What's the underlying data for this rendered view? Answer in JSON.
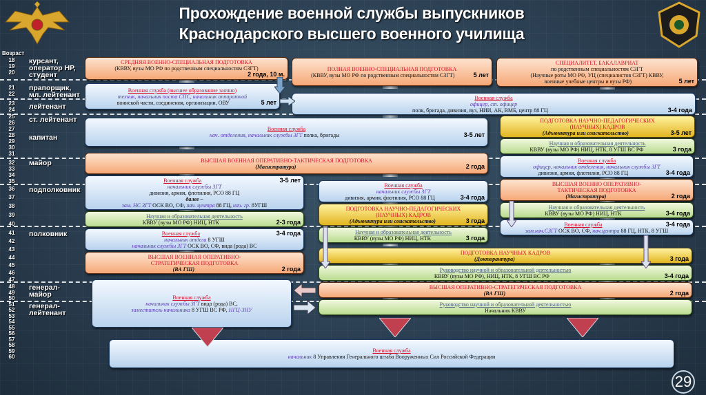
{
  "header": {
    "title_line1": "Прохождение военной службы выпускников",
    "title_line2": "Краснодарского высшего военного училища"
  },
  "age_header": "Возраст",
  "ages": [
    "18",
    "19",
    "20",
    "21",
    "22",
    "23",
    "24",
    "25",
    "26",
    "27",
    "28",
    "29",
    "30",
    "31",
    "32",
    "33",
    "34",
    "35",
    "36",
    "37",
    "38",
    "39",
    "40",
    "41",
    "42",
    "43",
    "44",
    "45",
    "46",
    "47",
    "48",
    "49",
    "50",
    "51",
    "52",
    "53",
    "54",
    "55",
    "56",
    "57",
    "58",
    "59",
    "60"
  ],
  "ranks": [
    {
      "lines": [
        "курсант,",
        "оператор НР,",
        "студент"
      ]
    },
    {
      "lines": [
        "прапорщик,",
        "мл. лейтенант"
      ]
    },
    {
      "lines": [
        "лейтенант"
      ]
    },
    {
      "lines": [
        "ст. лейтенант"
      ]
    },
    {
      "lines": [
        "капитан"
      ]
    },
    {
      "lines": [
        "майор"
      ]
    },
    {
      "lines": [
        "подполковник"
      ]
    },
    {
      "lines": [
        "полковник"
      ]
    },
    {
      "lines": [
        "генерал-",
        "майор"
      ]
    },
    {
      "lines": [
        "генерал-",
        "лейтенант"
      ]
    }
  ],
  "colors": {
    "title_red": "#d4102a",
    "role_purple": "#5a3cb0",
    "education": "#f6a877",
    "service": "#b9d3ee",
    "science_training": "#e2b520",
    "science_work": "#b9dc8e"
  },
  "boxes": [
    {
      "id": "b1",
      "kind": "orange",
      "duration": "2 года, 10 м.",
      "lines": [
        [
          {
            "s": "red",
            "t": "СРЕДНЯЯ ВОЕННО-СПЕЦИАЛЬНАЯ ПОДГОТОВКА"
          }
        ],
        [
          {
            "s": "n",
            "t": "(КВВУ, вузы МО РФ по родственным специальностям СЗГТ)"
          }
        ]
      ]
    },
    {
      "id": "b2",
      "kind": "blue",
      "duration": "5 лет",
      "lines": [
        [
          {
            "s": "redu",
            "t": "Военная служба (высшее образование заочно)"
          }
        ],
        [
          {
            "s": "it",
            "t": "техник, начальник поста СПС, начальник аппаратной"
          }
        ],
        [
          {
            "s": "n",
            "t": "воинской части, соединения, организации, ОВУ"
          }
        ]
      ]
    },
    {
      "id": "b3",
      "kind": "orange",
      "duration": "5 лет",
      "lines": [
        [
          {
            "s": "red",
            "t": "ПОЛНАЯ ВОЕННО-СПЕЦИАЛЬНАЯ ПОДГОТОВКА"
          }
        ],
        [
          {
            "s": "n",
            "t": "(КВВУ, вузы МО РФ по родственным специальностям СЗГТ)"
          }
        ]
      ]
    },
    {
      "id": "b4",
      "kind": "orange",
      "duration": "5 лет",
      "lines": [
        [
          {
            "s": "red",
            "t": "СПЕЦИАЛИТЕТ, БАКАЛАВРИАТ"
          }
        ],
        [
          {
            "s": "n",
            "t": "по родственным специальностям СЗГТ"
          }
        ],
        [
          {
            "s": "n",
            "t": "(Научные роты МО РФ, УЦ (специалистов СЗГТ) КВВУ,"
          }
        ],
        [
          {
            "s": "n",
            "t": "военные учебные центры и вузы РФ)"
          }
        ]
      ]
    },
    {
      "id": "b5",
      "kind": "blue",
      "duration": "3-4 года",
      "lines": [
        [
          {
            "s": "redu",
            "t": "Военная служба"
          }
        ],
        [
          {
            "s": "it",
            "t": "офицер, ст. офицер"
          }
        ],
        [
          {
            "s": "n",
            "t": "полк, бригада, дивизия, вуз, НИИ, АК, ВМБ, центр 88 ГЦ"
          }
        ]
      ]
    },
    {
      "id": "b6",
      "kind": "blue",
      "duration": "3-5 лет",
      "lines": [
        [
          {
            "s": "redu",
            "t": "Военная служба"
          }
        ],
        [
          {
            "s": "it",
            "t": "нач. отделения, начальник службы ЗГТ "
          },
          {
            "s": "n",
            "t": "полка, бригады"
          }
        ]
      ]
    },
    {
      "id": "b7",
      "kind": "yellow",
      "duration": "3-5 лет",
      "lines": [
        [
          {
            "s": "red",
            "t": "ПОДГОТОВКА НАУЧНО-ПЕДАГОГИЧЕСКИХ"
          }
        ],
        [
          {
            "s": "red",
            "t": "(НАУЧНЫХ) КАДРОВ"
          }
        ],
        [
          {
            "s": "bi",
            "t": "(Адъюнктура или соискательство)"
          }
        ]
      ]
    },
    {
      "id": "b8",
      "kind": "green",
      "duration": "3 года",
      "lines": [
        [
          {
            "s": "ul",
            "t": "Научная и образовательная деятельность"
          }
        ],
        [
          {
            "s": "n",
            "t": "КВВУ (вузы МО РФ) НИЦ, НТК, 8 УГШ ВС РФ"
          }
        ]
      ]
    },
    {
      "id": "b9",
      "kind": "orange",
      "duration": "2 года",
      "lines": [
        [
          {
            "s": "red",
            "t": "ВЫСШАЯ ВОЕННАЯ ОПЕРАТИВНО-ТАКТИЧЕСКАЯ ПОДГОТОВКА"
          }
        ],
        [
          {
            "s": "bi",
            "t": "(Магистратура)"
          }
        ]
      ]
    },
    {
      "id": "b10",
      "kind": "blue",
      "duration": "3-4 года",
      "lines": [
        [
          {
            "s": "redu",
            "t": "Военная служба"
          }
        ],
        [
          {
            "s": "it",
            "t": "офицер, начальник отделения, начальник службы ЗГТ"
          }
        ],
        [
          {
            "s": "n",
            "t": "дивизия, армия, флотилия, РСО 88 ГЦ"
          }
        ]
      ]
    },
    {
      "id": "b11",
      "kind": "blue",
      "duration": "3-5 лет",
      "lines": [
        [
          {
            "s": "redu",
            "t": "Военная служба"
          }
        ],
        [
          {
            "s": "it",
            "t": "начальник службы ЗГТ"
          }
        ],
        [
          {
            "s": "n",
            "t": "дивизия, армия, флотилия, РСО 88 ГЦ"
          }
        ],
        [
          {
            "s": "bi",
            "t": "далее –"
          }
        ],
        [
          {
            "s": "it",
            "t": "зам. НС ЗГТ "
          },
          {
            "s": "n",
            "t": "ОСК ВО, СФ, "
          },
          {
            "s": "it",
            "t": "нач. центра "
          },
          {
            "s": "n",
            "t": "88 ГЦ, "
          },
          {
            "s": "it",
            "t": "нач. гр. "
          },
          {
            "s": "n",
            "t": "8УГШ"
          }
        ]
      ]
    },
    {
      "id": "b12",
      "kind": "green",
      "duration": "2-3 года",
      "lines": [
        [
          {
            "s": "ul",
            "t": "Научная и образовательная деятельность"
          }
        ],
        [
          {
            "s": "n",
            "t": "КВВУ (вузы МО РФ) НИЦ, НТК"
          }
        ]
      ]
    },
    {
      "id": "b13",
      "kind": "blue",
      "duration": "3-4 года",
      "lines": [
        [
          {
            "s": "redu",
            "t": "Военная служба"
          }
        ],
        [
          {
            "s": "it",
            "t": "начальник службы ЗГТ"
          }
        ],
        [
          {
            "s": "n",
            "t": "дивизия, армия, флотилия, РСО 88 ГЦ"
          }
        ]
      ]
    },
    {
      "id": "b14",
      "kind": "orange",
      "duration": "2 года",
      "lines": [
        [
          {
            "s": "red",
            "t": "ВЫСШАЯ ВОЕННО ОПЕРАТИВНО-"
          }
        ],
        [
          {
            "s": "red",
            "t": "ТАКТИЧЕСКАЯ ПОДГОТОВКА"
          }
        ],
        [
          {
            "s": "bi",
            "t": "(Магистратура)"
          }
        ]
      ]
    },
    {
      "id": "b15",
      "kind": "yellow",
      "duration": "3 года",
      "lines": [
        [
          {
            "s": "red",
            "t": "ПОДГОТОВКА НАУЧНО-ПЕДАГОГИЧЕСКИХ"
          }
        ],
        [
          {
            "s": "red",
            "t": "(НАУЧНЫХ) КАДРОВ"
          }
        ],
        [
          {
            "s": "bi",
            "t": "(Адъюнктура или соискательство)"
          }
        ]
      ]
    },
    {
      "id": "b16",
      "kind": "green",
      "duration": "3-4 года",
      "lines": [
        [
          {
            "s": "ul",
            "t": "Научная и образовательная деятельность"
          }
        ],
        [
          {
            "s": "n",
            "t": "КВВУ (вузы МО РФ) НИЦ, НТК"
          }
        ]
      ]
    },
    {
      "id": "b17",
      "kind": "blue",
      "duration": "3-4 года",
      "lines": [
        [
          {
            "s": "redu",
            "t": "Военная служба"
          }
        ],
        [
          {
            "s": "it",
            "t": "начальник отдела "
          },
          {
            "s": "n",
            "t": "8 УГШ"
          }
        ],
        [
          {
            "s": "it",
            "t": "начальник службы ЗГТ "
          },
          {
            "s": "n",
            "t": "ОСК ВО, СФ, вида (рода) ВС"
          }
        ]
      ]
    },
    {
      "id": "b18",
      "kind": "green",
      "duration": "3 года",
      "lines": [
        [
          {
            "s": "ul",
            "t": "Научная и образовательная деятельность"
          }
        ],
        [
          {
            "s": "n",
            "t": "КВВУ (вузы МО РФ) НИЦ, НТК"
          }
        ]
      ]
    },
    {
      "id": "b19",
      "kind": "blue",
      "duration": "3-4 года",
      "lines": [
        [
          {
            "s": "redu",
            "t": "Военная служба"
          }
        ],
        [
          {
            "s": "it",
            "t": "зам.нач.СЗГТ "
          },
          {
            "s": "n",
            "t": "ОСК ВО, СФ, "
          },
          {
            "s": "it",
            "t": "нач.центра "
          },
          {
            "s": "n",
            "t": "88 ГЦ, НТК, 8 УГШ"
          }
        ]
      ]
    },
    {
      "id": "b20",
      "kind": "orange",
      "duration": "2 года",
      "lines": [
        [
          {
            "s": "red",
            "t": "ВЫСШАЯ ВОЕННАЯ ОПЕРАТИВНО-"
          }
        ],
        [
          {
            "s": "red",
            "t": "СТРАТЕГИЧЕСКАЯ ПОДГОТОВКА"
          }
        ],
        [
          {
            "s": "bi",
            "t": "(ВА ГШ)"
          }
        ]
      ]
    },
    {
      "id": "b21",
      "kind": "yellow",
      "duration": "3 года",
      "lines": [
        [
          {
            "s": "red",
            "t": "ПОДГОТОВКА НАУЧНЫХ КАДРОВ"
          }
        ],
        [
          {
            "s": "bi",
            "t": "(Докторантура)"
          }
        ]
      ]
    },
    {
      "id": "b22",
      "kind": "green",
      "duration": "3-4 года",
      "lines": [
        [
          {
            "s": "ul",
            "t": "Руководство научной и образовательной деятельностью"
          }
        ],
        [
          {
            "s": "n",
            "t": "КВВУ (вузы МО РФ), НИЦ, НТК, 8 УГШ ВС РФ"
          }
        ]
      ]
    },
    {
      "id": "b23",
      "kind": "blue",
      "duration": "",
      "lines": [
        [
          {
            "s": "redu",
            "t": "Военная служба"
          }
        ],
        [
          {
            "s": "it",
            "t": "начальник службы ЗГТ "
          },
          {
            "s": "n",
            "t": "вида (рода) ВС,"
          }
        ],
        [
          {
            "s": "it",
            "t": "заместитель начальника "
          },
          {
            "s": "n",
            "t": "8 УГШ ВС РФ, "
          },
          {
            "s": "it",
            "t": "НГЦ-ЗНУ"
          }
        ]
      ]
    },
    {
      "id": "b24",
      "kind": "orange",
      "duration": "2 года",
      "lines": [
        [
          {
            "s": "red",
            "t": "ВЫСШАЯ ОПЕРАТИВНО-СТРАТЕГИЧЕСКАЯ ПОДГОТОВКА"
          }
        ],
        [
          {
            "s": "bi",
            "t": "(ВА ГШ)"
          }
        ]
      ]
    },
    {
      "id": "b25",
      "kind": "green",
      "duration": "",
      "lines": [
        [
          {
            "s": "ul",
            "t": "Руководство научной и образовательной деятельностью"
          }
        ],
        [
          {
            "s": "n",
            "t": "Начальник КВВУ"
          }
        ]
      ]
    },
    {
      "id": "b26",
      "kind": "blue",
      "duration": "",
      "lines": [
        [
          {
            "s": "redu",
            "t": "Военная служба"
          }
        ],
        [
          {
            "s": "it",
            "t": "начальник "
          },
          {
            "s": "n",
            "t": "8 Управления Генерального штаба Вооруженных Сил Российской Федерации"
          }
        ]
      ]
    }
  ],
  "page_number": "29"
}
